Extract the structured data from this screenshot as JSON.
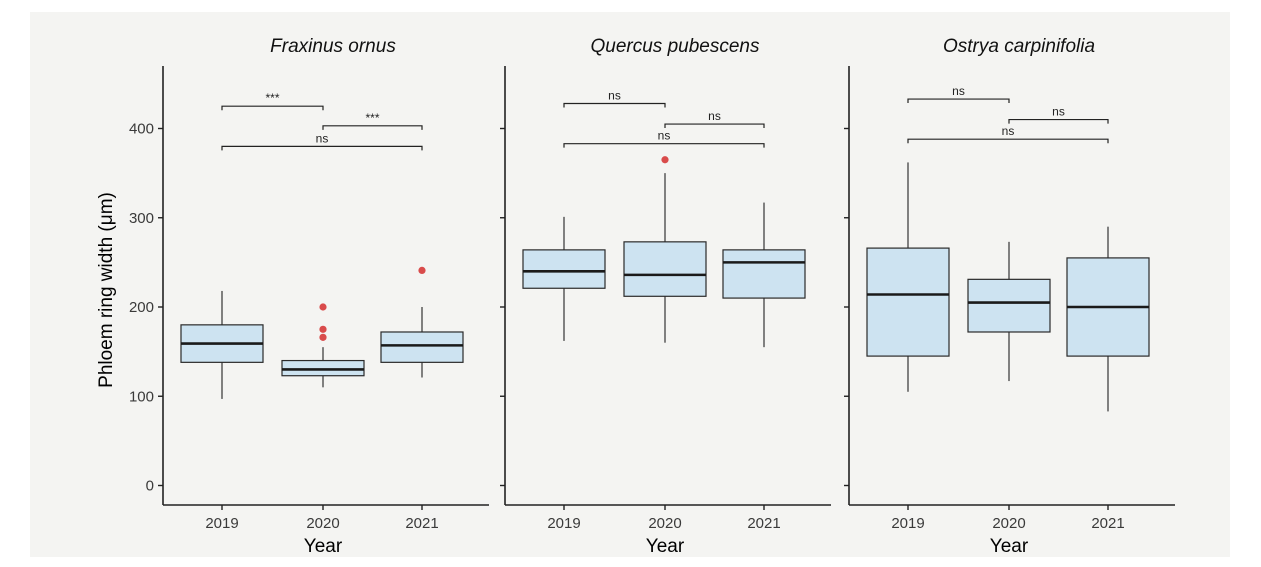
{
  "chart_data": {
    "type": "boxplot",
    "ylabel": "Phloem ring width (μm)",
    "xlabel": "Year",
    "ylim": [
      0,
      460
    ],
    "yticks": [
      0,
      100,
      200,
      300,
      400
    ],
    "categories": [
      "2019",
      "2020",
      "2021"
    ],
    "colors": {
      "box_fill": "#cde3f1",
      "box_stroke": "#2a2a2a",
      "median": "#1a1a1a",
      "outlier": "#d94b4b",
      "background": "#f4f4f2"
    },
    "panels": [
      {
        "title": "Fraxinus ornus",
        "boxes": [
          {
            "year": "2019",
            "min": 97,
            "q1": 138,
            "median": 159,
            "q3": 180,
            "max": 218,
            "outliers": []
          },
          {
            "year": "2020",
            "min": 110,
            "q1": 123,
            "median": 130,
            "q3": 140,
            "max": 155,
            "outliers": [
              166,
              175,
              200
            ]
          },
          {
            "year": "2021",
            "min": 121,
            "q1": 138,
            "median": 157,
            "q3": 172,
            "max": 200,
            "outliers": [
              241
            ]
          }
        ],
        "comparisons": [
          {
            "from": "2019",
            "to": "2020",
            "y": 425,
            "label": "***"
          },
          {
            "from": "2020",
            "to": "2021",
            "y": 403,
            "label": "***"
          },
          {
            "from": "2019",
            "to": "2021",
            "y": 380,
            "label": "ns"
          }
        ]
      },
      {
        "title": "Quercus pubescens",
        "boxes": [
          {
            "year": "2019",
            "min": 162,
            "q1": 221,
            "median": 240,
            "q3": 264,
            "max": 301,
            "outliers": []
          },
          {
            "year": "2020",
            "min": 160,
            "q1": 212,
            "median": 236,
            "q3": 273,
            "max": 350,
            "outliers": [
              365
            ]
          },
          {
            "year": "2021",
            "min": 155,
            "q1": 210,
            "median": 250,
            "q3": 264,
            "max": 317,
            "outliers": []
          }
        ],
        "comparisons": [
          {
            "from": "2019",
            "to": "2020",
            "y": 428,
            "label": "ns"
          },
          {
            "from": "2020",
            "to": "2021",
            "y": 405,
            "label": "ns"
          },
          {
            "from": "2019",
            "to": "2021",
            "y": 383,
            "label": "ns"
          }
        ]
      },
      {
        "title": "Ostrya carpinifolia",
        "boxes": [
          {
            "year": "2019",
            "min": 105,
            "q1": 145,
            "median": 214,
            "q3": 266,
            "max": 362,
            "outliers": []
          },
          {
            "year": "2020",
            "min": 117,
            "q1": 172,
            "median": 205,
            "q3": 231,
            "max": 273,
            "outliers": []
          },
          {
            "year": "2021",
            "min": 83,
            "q1": 145,
            "median": 200,
            "q3": 255,
            "max": 290,
            "outliers": []
          }
        ],
        "comparisons": [
          {
            "from": "2019",
            "to": "2020",
            "y": 433,
            "label": "ns"
          },
          {
            "from": "2020",
            "to": "2021",
            "y": 410,
            "label": "ns"
          },
          {
            "from": "2019",
            "to": "2021",
            "y": 388,
            "label": "ns"
          }
        ]
      }
    ]
  }
}
